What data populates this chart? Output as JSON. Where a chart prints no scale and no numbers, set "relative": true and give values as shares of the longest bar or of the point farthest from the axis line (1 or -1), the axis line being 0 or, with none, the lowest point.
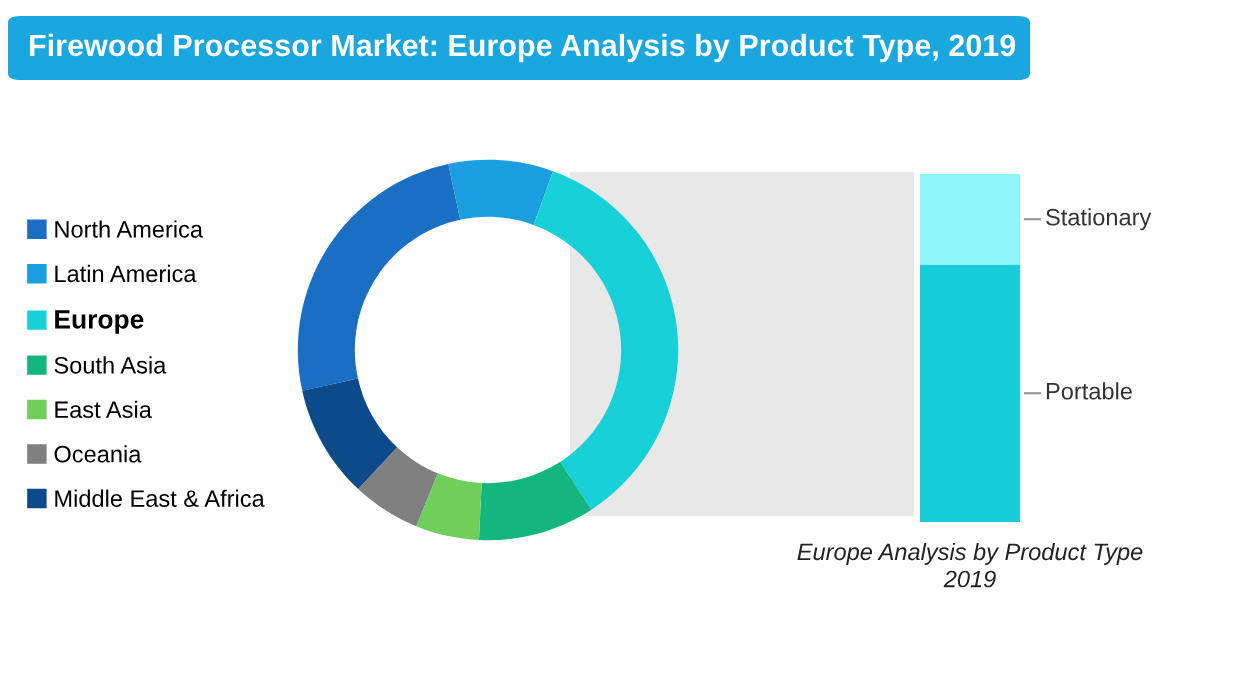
{
  "chart_data": [
    {
      "type": "donut",
      "title": "Firewood Processor Market: Europe Analysis by Product Type, 2019",
      "legend": "left",
      "categories": [
        "North America",
        "Latin America",
        "Europe",
        "South Asia",
        "East Asia",
        "Oceania",
        "Middle East & Africa"
      ],
      "values": [
        25.1,
        8.9,
        35.3,
        9.9,
        5.4,
        5.8,
        9.6
      ],
      "colors": [
        "#1a6fc4",
        "#1b9ee0",
        "#17d0d8",
        "#12b67e",
        "#6fcf5a",
        "#808080",
        "#0d4a8a"
      ]
    },
    {
      "type": "bar",
      "stacked": true,
      "relative": true,
      "categories": [
        null
      ],
      "xlabel": "Europe Analysis by Product Type\n2019",
      "series": [
        {
          "name": "Portable",
          "color": "#17cdd8",
          "values": [
            0.74
          ]
        },
        {
          "name": "Stationary",
          "color": "#8ef5f8",
          "values": [
            0.26
          ]
        }
      ]
    }
  ]
}
